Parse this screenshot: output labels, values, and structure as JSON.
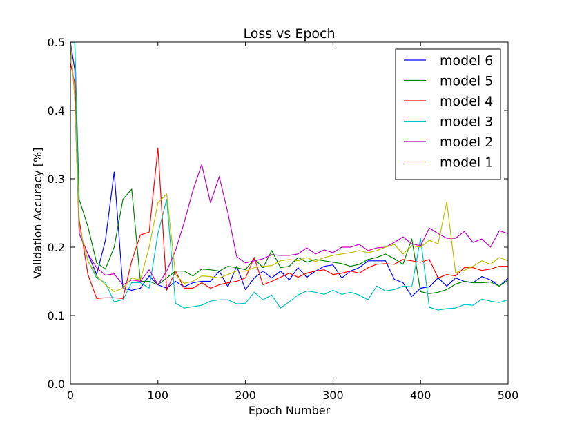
{
  "chart_data": {
    "type": "line",
    "title": "Loss vs Epoch",
    "xlabel": "Epoch Number",
    "ylabel": "Validation Accuracy [%]",
    "xlim": [
      0,
      500
    ],
    "ylim": [
      0.0,
      0.5
    ],
    "xticks": [
      0,
      100,
      200,
      300,
      400,
      500
    ],
    "yticks": [
      0.0,
      0.1,
      0.2,
      0.3,
      0.4,
      0.5
    ],
    "xtick_labels": [
      "0",
      "100",
      "200",
      "300",
      "400",
      "500"
    ],
    "ytick_labels": [
      "0.0",
      "0.1",
      "0.2",
      "0.3",
      "0.4",
      "0.5"
    ],
    "grid": false,
    "legend_position": "top-right",
    "x": [
      0,
      5,
      10,
      20,
      30,
      40,
      50,
      60,
      70,
      80,
      90,
      100,
      110,
      120,
      130,
      140,
      150,
      160,
      170,
      180,
      190,
      200,
      210,
      220,
      230,
      240,
      250,
      260,
      270,
      280,
      290,
      300,
      310,
      320,
      330,
      340,
      350,
      360,
      370,
      380,
      390,
      400,
      410,
      420,
      430,
      440,
      450,
      460,
      470,
      480,
      490,
      500
    ],
    "series": [
      {
        "name": "model 6",
        "color": "#0000ff",
        "values": [
          0.5,
          0.46,
          0.22,
          0.19,
          0.16,
          0.21,
          0.31,
          0.14,
          0.137,
          0.14,
          0.158,
          0.145,
          0.14,
          0.15,
          0.142,
          0.148,
          0.15,
          0.15,
          0.165,
          0.142,
          0.172,
          0.138,
          0.155,
          0.165,
          0.155,
          0.165,
          0.152,
          0.17,
          0.156,
          0.165,
          0.172,
          0.174,
          0.155,
          0.165,
          0.17,
          0.18,
          0.18,
          0.18,
          0.153,
          0.148,
          0.128,
          0.14,
          0.142,
          0.155,
          0.143,
          0.155,
          0.15,
          0.148,
          0.157,
          0.152,
          0.143,
          0.155
        ]
      },
      {
        "name": "model 5",
        "color": "#008000",
        "values": [
          0.5,
          0.5,
          0.27,
          0.23,
          0.177,
          0.168,
          0.2,
          0.27,
          0.285,
          0.15,
          0.15,
          0.145,
          0.155,
          0.165,
          0.165,
          0.158,
          0.168,
          0.167,
          0.165,
          0.172,
          0.17,
          0.167,
          0.183,
          0.17,
          0.195,
          0.17,
          0.172,
          0.185,
          0.178,
          0.182,
          0.18,
          0.178,
          0.176,
          0.172,
          0.175,
          0.182,
          0.185,
          0.19,
          0.183,
          0.175,
          0.212,
          0.135,
          0.132,
          0.134,
          0.138,
          0.146,
          0.15,
          0.148,
          0.148,
          0.149,
          0.143,
          0.152
        ]
      },
      {
        "name": "model 4",
        "color": "#ff0000",
        "values": [
          0.47,
          0.44,
          0.24,
          0.16,
          0.125,
          0.126,
          0.126,
          0.125,
          0.18,
          0.218,
          0.222,
          0.345,
          0.137,
          0.165,
          0.14,
          0.14,
          0.148,
          0.14,
          0.145,
          0.148,
          0.15,
          0.155,
          0.185,
          0.145,
          0.15,
          0.156,
          0.162,
          0.156,
          0.162,
          0.165,
          0.167,
          0.16,
          0.162,
          0.165,
          0.162,
          0.17,
          0.175,
          0.176,
          0.175,
          0.182,
          0.18,
          0.178,
          0.182,
          0.155,
          0.16,
          0.158,
          0.17,
          0.17,
          0.166,
          0.168,
          0.172,
          0.172
        ]
      },
      {
        "name": "model 3",
        "color": "#00bfbf",
        "values": [
          0.5,
          0.5,
          0.23,
          0.18,
          0.155,
          0.148,
          0.12,
          0.123,
          0.148,
          0.148,
          0.14,
          0.22,
          0.27,
          0.118,
          0.111,
          0.113,
          0.115,
          0.121,
          0.123,
          0.123,
          0.117,
          0.118,
          0.134,
          0.123,
          0.13,
          0.111,
          0.12,
          0.13,
          0.136,
          0.134,
          0.131,
          0.137,
          0.131,
          0.134,
          0.13,
          0.123,
          0.143,
          0.136,
          0.138,
          0.143,
          0.142,
          0.213,
          0.112,
          0.108,
          0.11,
          0.111,
          0.116,
          0.115,
          0.124,
          0.121,
          0.119,
          0.123
        ]
      },
      {
        "name": "model 2",
        "color": "#bf00bf",
        "values": [
          0.5,
          0.42,
          0.22,
          0.19,
          0.17,
          0.159,
          0.161,
          0.145,
          0.152,
          0.15,
          0.167,
          0.145,
          0.165,
          0.195,
          0.236,
          0.283,
          0.321,
          0.265,
          0.303,
          0.25,
          0.186,
          0.177,
          0.18,
          0.183,
          0.189,
          0.188,
          0.188,
          0.19,
          0.199,
          0.19,
          0.196,
          0.192,
          0.2,
          0.2,
          0.204,
          0.195,
          0.199,
          0.2,
          0.207,
          0.215,
          0.205,
          0.202,
          0.228,
          0.22,
          0.213,
          0.213,
          0.223,
          0.207,
          0.212,
          0.2,
          0.224,
          0.22
        ]
      },
      {
        "name": "model 1",
        "color": "#bfbf00",
        "values": [
          0.5,
          0.42,
          0.23,
          0.18,
          0.158,
          0.145,
          0.135,
          0.14,
          0.155,
          0.152,
          0.2,
          0.265,
          0.278,
          0.16,
          0.147,
          0.15,
          0.158,
          0.157,
          0.155,
          0.16,
          0.165,
          0.165,
          0.17,
          0.172,
          0.173,
          0.18,
          0.182,
          0.18,
          0.185,
          0.179,
          0.185,
          0.188,
          0.19,
          0.192,
          0.195,
          0.192,
          0.195,
          0.2,
          0.204,
          0.19,
          0.202,
          0.2,
          0.21,
          0.205,
          0.266,
          0.163,
          0.166,
          0.172,
          0.18,
          0.175,
          0.185,
          0.18
        ]
      }
    ]
  }
}
